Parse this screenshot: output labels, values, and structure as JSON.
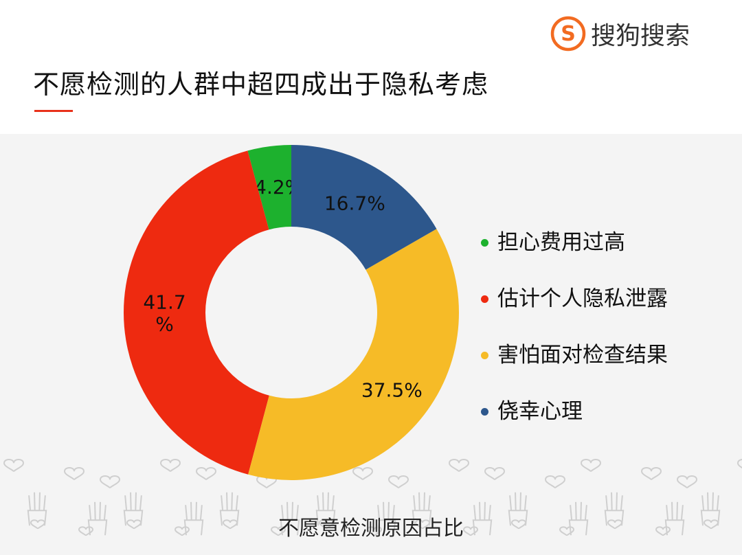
{
  "page_title": "不愿检测的人群中超四成出于隐私考虑",
  "brand": {
    "logo_letter": "S",
    "name": "搜狗搜索",
    "colors": {
      "ring": "#f26b21",
      "letter": "#f26b21"
    }
  },
  "footer_caption": "不愿意检测原因占比",
  "chart_data": {
    "type": "donut",
    "title": "",
    "series": [
      {
        "name": "担心费用过高",
        "value": 4.2,
        "label": "4.2%",
        "color": "#1db12e"
      },
      {
        "name": "估计个人隐私泄露",
        "value": 41.7,
        "label": "41.7\n%",
        "color": "#ee2a10"
      },
      {
        "name": "害怕面对检查结果",
        "value": 37.5,
        "label": "37.5%",
        "color": "#f6bb27"
      },
      {
        "name": "侥幸心理",
        "value": 16.7,
        "label": "16.7%",
        "color": "#2d578c"
      }
    ],
    "legend_order": [
      "担心费用过高",
      "估计个人隐私泄露",
      "害怕面对检查结果",
      "侥幸心理"
    ],
    "legend_position": "right",
    "direction": "counterclockwise",
    "start_angle": "top"
  }
}
